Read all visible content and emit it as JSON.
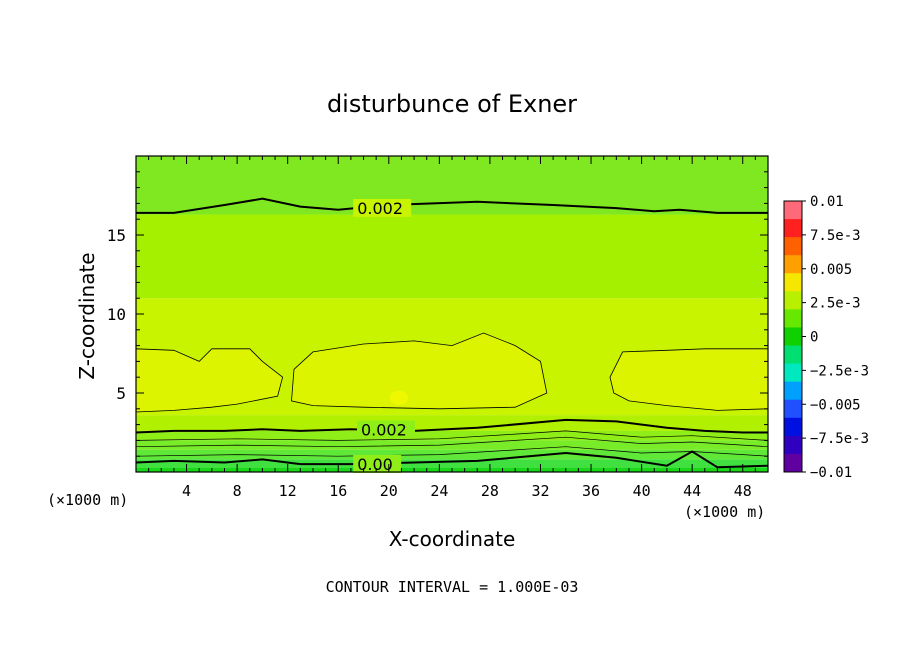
{
  "chart_data": {
    "type": "heatmap",
    "title": "disturbunce of Exner",
    "xlabel": "X-coordinate",
    "ylabel": "Z-coordinate",
    "x_unit": "(×1000 m)",
    "y_unit": "(×1000 m)",
    "footer": "CONTOUR INTERVAL = 1.000E-03",
    "xlim": [
      0,
      50
    ],
    "ylim": [
      0,
      20
    ],
    "x_ticks": [
      4,
      8,
      12,
      16,
      20,
      24,
      28,
      32,
      36,
      40,
      44,
      48
    ],
    "y_ticks": [
      5,
      10,
      15
    ],
    "x_tick_labels": [
      "4",
      "8",
      "12",
      "16",
      "20",
      "24",
      "28",
      "32",
      "36",
      "40",
      "44",
      "48"
    ],
    "y_tick_labels": [
      "5",
      "10",
      "15"
    ],
    "colorbar": {
      "range": [
        -0.01,
        0.01
      ],
      "tick_labels": [
        "0.01",
        "7.5e-3",
        "0.005",
        "2.5e-3",
        "0",
        "−2.5e-3",
        "−0.005",
        "−7.5e-3",
        "−0.01"
      ],
      "colors": [
        "#ff6a7a",
        "#ff2020",
        "#ff6000",
        "#ffa000",
        "#f5e800",
        "#b8f000",
        "#66e800",
        "#10d000",
        "#00e070",
        "#00e8c0",
        "#00a0ff",
        "#2050ff",
        "#0010e0",
        "#3000c0",
        "#6000a0"
      ]
    },
    "bands": [
      {
        "zmax": 0.3,
        "color": "#18d818"
      },
      {
        "zmax": 0.8,
        "color": "#40e040"
      },
      {
        "zmax": 1.4,
        "color": "#60e838"
      },
      {
        "zmax": 2.0,
        "color": "#78ec28"
      },
      {
        "zmax": 2.6,
        "color": "#90ee18"
      },
      {
        "zmax": 3.6,
        "color": "#b0f000"
      },
      {
        "zmax": 11.0,
        "color": "#c8f400"
      },
      {
        "zmax": 16.3,
        "color": "#a4f000"
      },
      {
        "zmax": 20.0,
        "color": "#80e820"
      }
    ],
    "warm_regions_color": "#dcf400",
    "contours": [
      {
        "level": "0.002",
        "z": [
          16.4,
          16.4,
          16.9,
          17.3,
          16.8,
          16.6,
          16.9,
          17.1,
          16.9,
          16.7,
          16.5,
          16.6,
          16.4,
          16.4
        ],
        "x": [
          0,
          3,
          7,
          10,
          13,
          16,
          20,
          27,
          33,
          38,
          41,
          43,
          46,
          50
        ],
        "label_x": 17.5
      },
      {
        "level": "0.002",
        "z": [
          2.5,
          2.6,
          2.6,
          2.7,
          2.6,
          2.7,
          2.6,
          2.8,
          3.3,
          3.2,
          2.8,
          2.6,
          2.5,
          2.5
        ],
        "x": [
          0,
          3,
          7,
          10,
          13,
          17,
          22,
          27,
          34,
          38,
          42,
          45,
          48,
          50
        ],
        "label_x": 17.8
      },
      {
        "level": "0.00",
        "z": [
          0.6,
          0.7,
          0.6,
          0.8,
          0.5,
          0.5,
          0.6,
          0.7,
          1.2,
          0.9,
          0.4,
          1.3,
          0.3,
          0.4
        ],
        "x": [
          0,
          3,
          7,
          10,
          13,
          17,
          22,
          27,
          34,
          38,
          42,
          44,
          46,
          50
        ],
        "label_x": 17.5
      }
    ]
  }
}
